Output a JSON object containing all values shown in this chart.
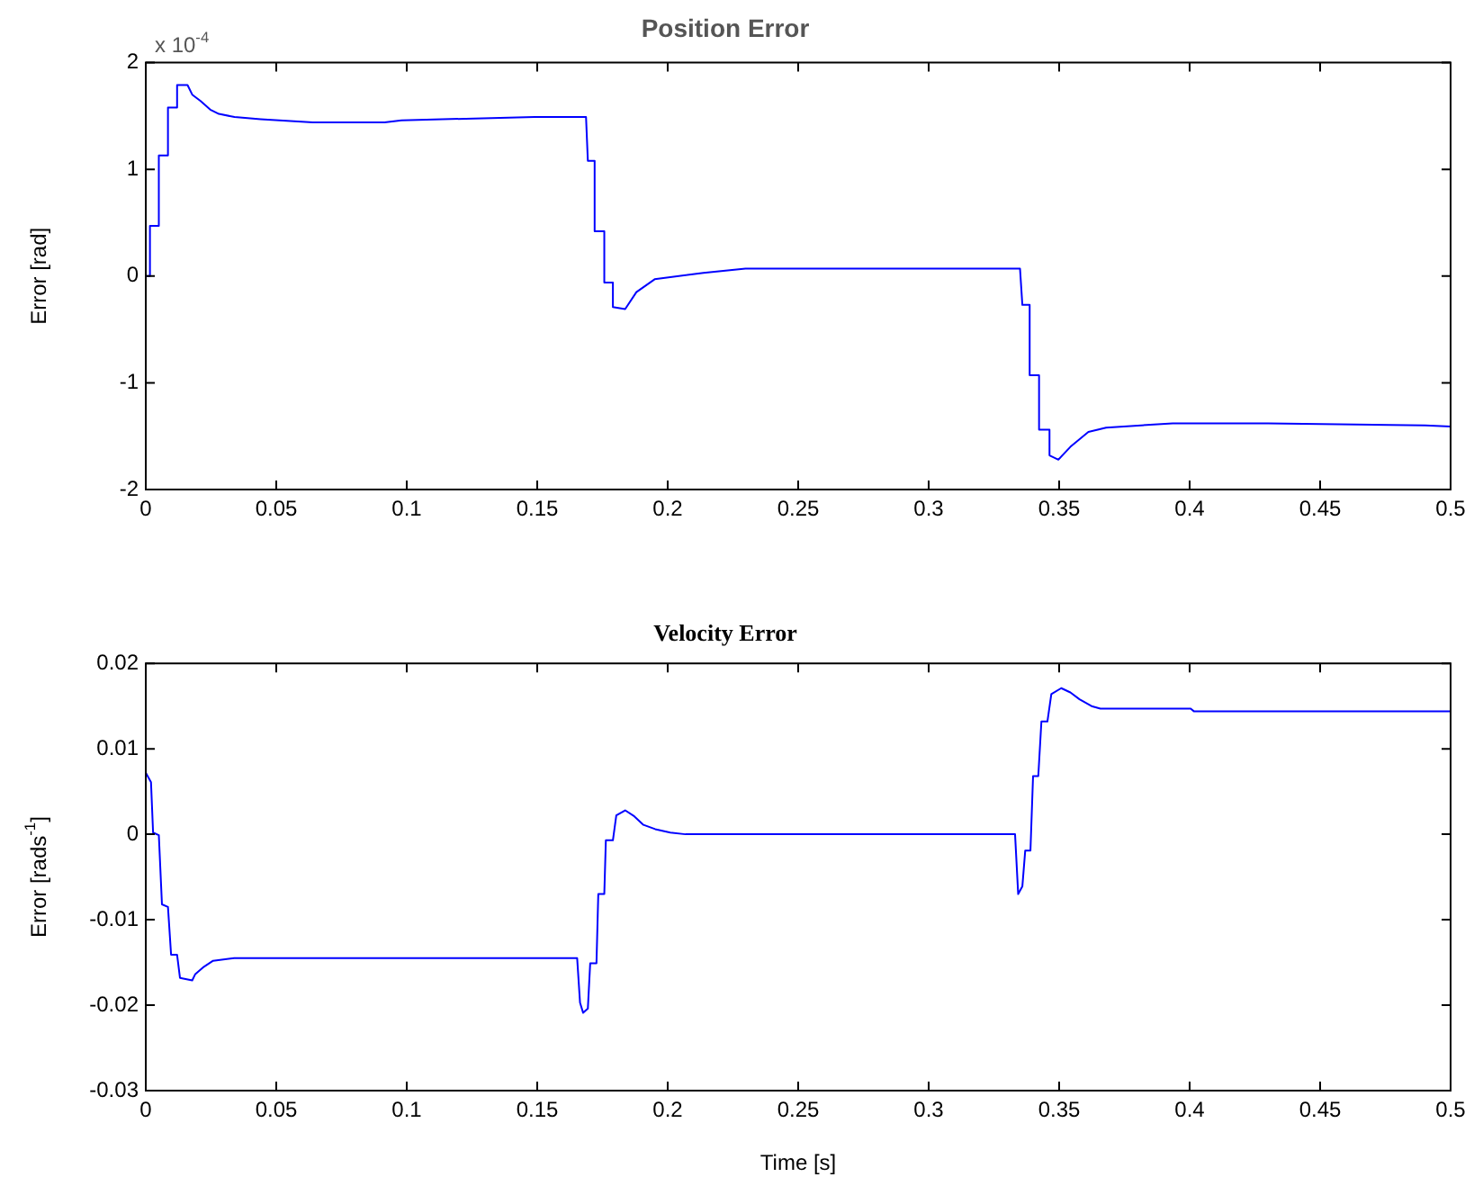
{
  "chart_data": [
    {
      "type": "line",
      "title": "Position Error",
      "ylabel": "Error [rad]",
      "annotations": [
        "x 10$^{-4}$"
      ],
      "marker": "none",
      "xlim": [
        0,
        0.5
      ],
      "xticks": [
        0,
        0.05,
        0.1,
        0.15,
        0.2,
        0.25,
        0.3,
        0.35,
        0.4,
        0.45,
        0.5
      ],
      "ylim": [
        -2,
        2
      ],
      "yticks": [
        -2,
        -1,
        0,
        1,
        2
      ],
      "series": [
        {
          "color": "#0000ff",
          "x": [
            0,
            0.0016,
            0.0016,
            0.005,
            0.005,
            0.0085,
            0.0085,
            0.012,
            0.012,
            0.016,
            0.0178,
            0.021,
            0.0247,
            0.028,
            0.034,
            0.044,
            0.064,
            0.0915,
            0.098,
            0.149,
            0.1687,
            0.1694,
            0.172,
            0.172,
            0.1757,
            0.1757,
            0.179,
            0.179,
            0.1837,
            0.188,
            0.195,
            0.2137,
            0.2298,
            0.335,
            0.3359,
            0.3387,
            0.3387,
            0.3423,
            0.3423,
            0.3463,
            0.3463,
            0.3497,
            0.3543,
            0.3612,
            0.368,
            0.3935,
            0.43,
            0.4903,
            0.5
          ],
          "values": [
            0,
            0,
            0.47,
            0.47,
            1.13,
            1.13,
            1.58,
            1.58,
            1.79,
            1.79,
            1.7,
            1.64,
            1.56,
            1.52,
            1.49,
            1.47,
            1.44,
            1.44,
            1.46,
            1.49,
            1.49,
            1.08,
            1.08,
            0.42,
            0.42,
            -0.06,
            -0.06,
            -0.29,
            -0.31,
            -0.15,
            -0.03,
            0.03,
            0.07,
            0.07,
            -0.27,
            -0.27,
            -0.93,
            -0.93,
            -1.44,
            -1.44,
            -1.68,
            -1.72,
            -1.6,
            -1.46,
            -1.42,
            -1.38,
            -1.38,
            -1.4,
            -1.41
          ]
        }
      ]
    },
    {
      "type": "line",
      "title": "Velocity Error",
      "xlabel": "Time [s]",
      "ylabel": "Error [rads$^{-1}$]",
      "marker": "none",
      "xlim": [
        0,
        0.5
      ],
      "xticks": [
        0,
        0.05,
        0.1,
        0.15,
        0.2,
        0.25,
        0.3,
        0.35,
        0.4,
        0.45,
        0.5
      ],
      "ylim": [
        -0.03,
        0.02
      ],
      "yticks": [
        -0.03,
        -0.02,
        -0.01,
        0,
        0.01,
        0.02
      ],
      "series": [
        {
          "color": "#0000ff",
          "x": [
            0,
            0.002,
            0.0028,
            0.005,
            0.0062,
            0.0085,
            0.0097,
            0.012,
            0.0131,
            0.0178,
            0.0189,
            0.0223,
            0.0258,
            0.0339,
            0.1653,
            0.1664,
            0.1676,
            0.1694,
            0.1703,
            0.1727,
            0.1734,
            0.1757,
            0.1763,
            0.179,
            0.1803,
            0.1837,
            0.1872,
            0.1907,
            0.1952,
            0.201,
            0.2068,
            0.3331,
            0.3343,
            0.3359,
            0.337,
            0.339,
            0.34,
            0.342,
            0.3432,
            0.3455,
            0.347,
            0.3508,
            0.3543,
            0.3578,
            0.3624,
            0.3658,
            0.4004,
            0.4016,
            0.5
          ],
          "values": [
            0.0072,
            0.0061,
            0.0002,
            -0.0001,
            -0.0082,
            -0.0085,
            -0.0141,
            -0.0141,
            -0.0168,
            -0.0171,
            -0.0164,
            -0.0155,
            -0.0148,
            -0.0145,
            -0.0145,
            -0.0197,
            -0.0209,
            -0.0204,
            -0.0151,
            -0.0151,
            -0.007,
            -0.007,
            -0.0007,
            -0.0007,
            0.0022,
            0.0028,
            0.0021,
            0.0011,
            0.0006,
            0.0002,
            0,
            0,
            -0.007,
            -0.0061,
            -0.0019,
            -0.0019,
            0.0068,
            0.0068,
            0.0132,
            0.0132,
            0.0164,
            0.0171,
            0.0166,
            0.0158,
            0.015,
            0.0147,
            0.0147,
            0.0144,
            0.0144
          ]
        }
      ]
    }
  ]
}
